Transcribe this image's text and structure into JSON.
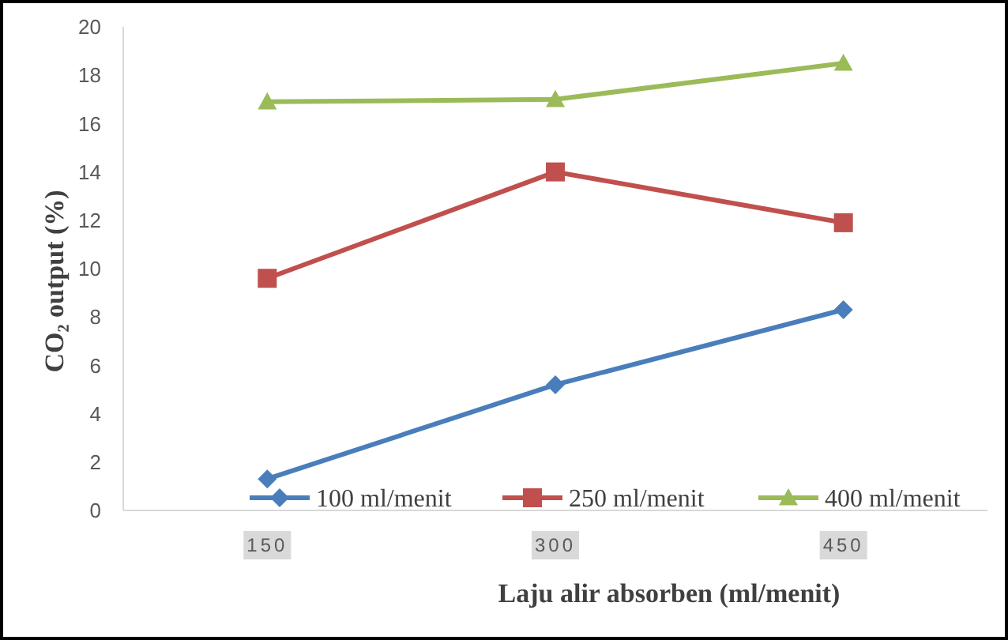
{
  "chart_data": {
    "type": "line",
    "xlabel": "Laju alir absorben (ml/menit)",
    "ylabel": "CO₂ output (%)",
    "categories": [
      "150",
      "300",
      "450"
    ],
    "series": [
      {
        "name": "100 ml/menit",
        "color": "#4a7ebb",
        "marker": "diamond",
        "values": [
          1.3,
          5.2,
          8.3
        ]
      },
      {
        "name": "250 ml/menit",
        "color": "#c0504d",
        "marker": "square",
        "values": [
          9.6,
          14.0,
          11.9
        ]
      },
      {
        "name": "400 ml/menit",
        "color": "#9bbb59",
        "marker": "triangle",
        "values": [
          16.9,
          17.0,
          18.5
        ]
      }
    ],
    "ylim": [
      0,
      20
    ],
    "yticks": [
      0,
      2,
      4,
      6,
      8,
      10,
      12,
      14,
      16,
      18,
      20
    ],
    "grid": false,
    "legend": "bottom",
    "line_style": "solid"
  }
}
